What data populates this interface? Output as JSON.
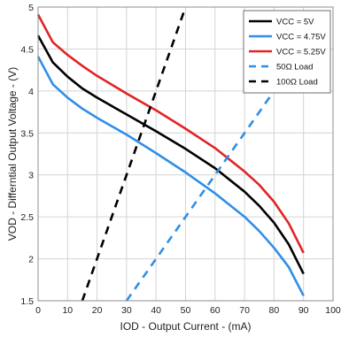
{
  "chart_data": {
    "type": "line",
    "xlabel": "IOD - Output Current - (mA)",
    "ylabel": "VOD - Differntial Output Voltage - (V)",
    "xlim": [
      0,
      100
    ],
    "ylim": [
      1.5,
      5
    ],
    "xticks": [
      "0",
      "10",
      "20",
      "30",
      "40",
      "50",
      "60",
      "70",
      "80",
      "90",
      "100"
    ],
    "yticks": [
      "1.5",
      "2",
      "2.5",
      "3",
      "3.5",
      "4",
      "4.5",
      "5"
    ],
    "grid": true,
    "legend_position": "top-right",
    "series": [
      {
        "name": "VCC = 5V",
        "color": "#000000",
        "dash": "solid",
        "x": [
          0,
          5,
          10,
          15,
          20,
          30,
          40,
          50,
          60,
          70,
          75,
          80,
          85,
          90
        ],
        "y": [
          4.66,
          4.34,
          4.17,
          4.03,
          3.92,
          3.72,
          3.52,
          3.31,
          3.08,
          2.8,
          2.63,
          2.43,
          2.17,
          1.82
        ]
      },
      {
        "name": "VCC = 4.75V",
        "color": "#2f8fe6",
        "dash": "solid",
        "x": [
          0,
          5,
          10,
          15,
          20,
          30,
          40,
          50,
          60,
          70,
          75,
          80,
          85,
          90
        ],
        "y": [
          4.41,
          4.08,
          3.92,
          3.79,
          3.68,
          3.48,
          3.26,
          3.03,
          2.78,
          2.5,
          2.33,
          2.13,
          1.9,
          1.56
        ]
      },
      {
        "name": "VCC = 5.25V",
        "color": "#e02424",
        "dash": "solid",
        "x": [
          0,
          5,
          10,
          15,
          20,
          30,
          40,
          50,
          60,
          70,
          75,
          80,
          85,
          90
        ],
        "y": [
          4.91,
          4.58,
          4.43,
          4.3,
          4.18,
          3.97,
          3.77,
          3.55,
          3.32,
          3.04,
          2.88,
          2.68,
          2.42,
          2.07
        ]
      },
      {
        "name": "50Ω Load",
        "color": "#2f8fe6",
        "dash": "dashed",
        "x": [
          30,
          82
        ],
        "y": [
          1.5,
          4.1
        ]
      },
      {
        "name": "100Ω Load",
        "color": "#000000",
        "dash": "dashed",
        "x": [
          15,
          50
        ],
        "y": [
          1.5,
          5.0
        ]
      }
    ]
  }
}
